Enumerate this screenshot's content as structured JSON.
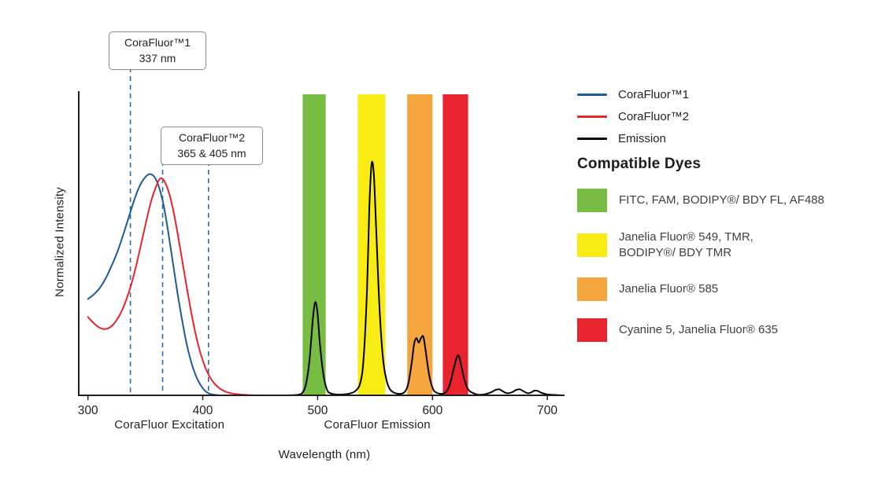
{
  "figure": {
    "ylabel": "Normalized Intensity",
    "xlabel": "Wavelength (nm)",
    "annotations": [
      {
        "line1": "CoraFluor™1",
        "line2": "337 nm"
      },
      {
        "line1": "CoraFluor™2",
        "line2": "365 & 405 nm"
      }
    ]
  },
  "legend": {
    "entries": [
      {
        "label": "CoraFluor™1",
        "color": "#1e5b96"
      },
      {
        "label": "CoraFluor™2",
        "color": "#e8232e"
      },
      {
        "label": "Emission",
        "color": "#000000"
      }
    ],
    "dyes_heading": "Compatible Dyes",
    "dyes": [
      {
        "color": "#77bc43",
        "lines": [
          "FITC, FAM, BODIPY®/ BDY FL, AF488"
        ]
      },
      {
        "color": "#f7ec13",
        "lines": [
          "Janelia Fluor® 549, TMR,",
          "BODIPY®/ BDY TMR"
        ]
      },
      {
        "color": "#f5a53d",
        "lines": [
          "Janelia Fluor® 585"
        ]
      },
      {
        "color": "#e8232e",
        "lines": [
          "Cyanine 5, Janelia Fluor® 635"
        ]
      }
    ]
  },
  "chart_data": {
    "type": "line",
    "xlabel": "Wavelength (nm)",
    "ylabel": "Normalized Intensity",
    "xlim": [
      292,
      715
    ],
    "ylim": [
      0,
      1.0
    ],
    "x_ticks": [
      300,
      400,
      500,
      600,
      700
    ],
    "x_axis_group_labels": [
      {
        "label": "CoraFluor Excitation",
        "center_nm": 371
      },
      {
        "label": "CoraFluor Emission",
        "center_nm": 552
      }
    ],
    "marker_color": "#2a6ca6",
    "markers": [
      {
        "nm": 337,
        "label": "CoraFluor™1 337 nm"
      },
      {
        "nm": 365,
        "label": "CoraFluor™2 365 nm"
      },
      {
        "nm": 405,
        "label": "CoraFluor™2 405 nm"
      }
    ],
    "bands": [
      {
        "name": "green",
        "color": "#77bc43",
        "range_nm": [
          487,
          507
        ],
        "dyes": "FITC, FAM, BODIPY®/ BDY FL, AF488"
      },
      {
        "name": "yellow",
        "color": "#f7ec13",
        "range_nm": [
          535,
          559
        ],
        "dyes": "Janelia Fluor® 549, TMR, BODIPY®/ BDY TMR"
      },
      {
        "name": "orange",
        "color": "#f5a53d",
        "range_nm": [
          578,
          600
        ],
        "dyes": "Janelia Fluor® 585"
      },
      {
        "name": "red",
        "color": "#e8232e",
        "range_nm": [
          609,
          631
        ],
        "dyes": "Cyanine 5, Janelia Fluor® 635"
      }
    ],
    "series": [
      {
        "name": "CoraFluor™1",
        "color": "#1e5b96",
        "points": [
          [
            300,
            0.32
          ],
          [
            305,
            0.335
          ],
          [
            310,
            0.355
          ],
          [
            315,
            0.385
          ],
          [
            320,
            0.425
          ],
          [
            325,
            0.47
          ],
          [
            330,
            0.525
          ],
          [
            335,
            0.585
          ],
          [
            340,
            0.645
          ],
          [
            345,
            0.695
          ],
          [
            350,
            0.725
          ],
          [
            354,
            0.735
          ],
          [
            358,
            0.725
          ],
          [
            362,
            0.69
          ],
          [
            366,
            0.63
          ],
          [
            370,
            0.54
          ],
          [
            374,
            0.44
          ],
          [
            378,
            0.34
          ],
          [
            382,
            0.25
          ],
          [
            386,
            0.17
          ],
          [
            390,
            0.11
          ],
          [
            394,
            0.065
          ],
          [
            398,
            0.035
          ],
          [
            402,
            0.015
          ],
          [
            406,
            0.005
          ],
          [
            410,
            0.002
          ],
          [
            416,
            0
          ]
        ]
      },
      {
        "name": "CoraFluor™2",
        "color": "#e8232e",
        "points": [
          [
            300,
            0.26
          ],
          [
            305,
            0.24
          ],
          [
            310,
            0.225
          ],
          [
            315,
            0.22
          ],
          [
            320,
            0.228
          ],
          [
            325,
            0.25
          ],
          [
            330,
            0.285
          ],
          [
            335,
            0.335
          ],
          [
            340,
            0.4
          ],
          [
            345,
            0.48
          ],
          [
            350,
            0.565
          ],
          [
            355,
            0.645
          ],
          [
            360,
            0.7
          ],
          [
            363,
            0.72
          ],
          [
            366,
            0.715
          ],
          [
            370,
            0.68
          ],
          [
            374,
            0.62
          ],
          [
            378,
            0.54
          ],
          [
            382,
            0.45
          ],
          [
            386,
            0.36
          ],
          [
            390,
            0.275
          ],
          [
            394,
            0.2
          ],
          [
            398,
            0.14
          ],
          [
            402,
            0.095
          ],
          [
            406,
            0.062
          ],
          [
            410,
            0.04
          ],
          [
            415,
            0.022
          ],
          [
            420,
            0.012
          ],
          [
            426,
            0.006
          ],
          [
            432,
            0.003
          ],
          [
            440,
            0.001
          ],
          [
            450,
            0
          ]
        ]
      },
      {
        "name": "Emission",
        "color": "#000000",
        "points": [
          [
            470,
            0
          ],
          [
            483,
            0.002
          ],
          [
            487,
            0.01
          ],
          [
            490,
            0.04
          ],
          [
            493,
            0.12
          ],
          [
            496,
            0.26
          ],
          [
            498,
            0.31
          ],
          [
            500,
            0.27
          ],
          [
            502,
            0.17
          ],
          [
            505,
            0.07
          ],
          [
            508,
            0.02
          ],
          [
            511,
            0.007
          ],
          [
            516,
            0.003
          ],
          [
            522,
            0.003
          ],
          [
            528,
            0.006
          ],
          [
            533,
            0.015
          ],
          [
            537,
            0.04
          ],
          [
            540,
            0.12
          ],
          [
            543,
            0.35
          ],
          [
            545,
            0.62
          ],
          [
            547,
            0.77
          ],
          [
            549,
            0.73
          ],
          [
            551,
            0.55
          ],
          [
            554,
            0.28
          ],
          [
            557,
            0.12
          ],
          [
            560,
            0.05
          ],
          [
            563,
            0.02
          ],
          [
            567,
            0.008
          ],
          [
            572,
            0.005
          ],
          [
            576,
            0.012
          ],
          [
            579,
            0.04
          ],
          [
            582,
            0.11
          ],
          [
            584,
            0.17
          ],
          [
            586,
            0.19
          ],
          [
            588,
            0.175
          ],
          [
            590,
            0.19
          ],
          [
            592,
            0.195
          ],
          [
            594,
            0.15
          ],
          [
            597,
            0.07
          ],
          [
            600,
            0.025
          ],
          [
            603,
            0.01
          ],
          [
            608,
            0.005
          ],
          [
            612,
            0.012
          ],
          [
            615,
            0.035
          ],
          [
            618,
            0.08
          ],
          [
            621,
            0.125
          ],
          [
            623,
            0.13
          ],
          [
            625,
            0.1
          ],
          [
            628,
            0.05
          ],
          [
            631,
            0.02
          ],
          [
            635,
            0.008
          ],
          [
            640,
            0.002
          ],
          [
            646,
            0.004
          ],
          [
            651,
            0.01
          ],
          [
            655,
            0.018
          ],
          [
            658,
            0.02
          ],
          [
            661,
            0.014
          ],
          [
            665,
            0.007
          ],
          [
            669,
            0.01
          ],
          [
            673,
            0.018
          ],
          [
            676,
            0.02
          ],
          [
            679,
            0.014
          ],
          [
            683,
            0.007
          ],
          [
            686,
            0.01
          ],
          [
            689,
            0.016
          ],
          [
            692,
            0.014
          ],
          [
            695,
            0.008
          ],
          [
            700,
            0.003
          ],
          [
            708,
            0.001
          ],
          [
            714,
            0
          ]
        ]
      }
    ]
  }
}
